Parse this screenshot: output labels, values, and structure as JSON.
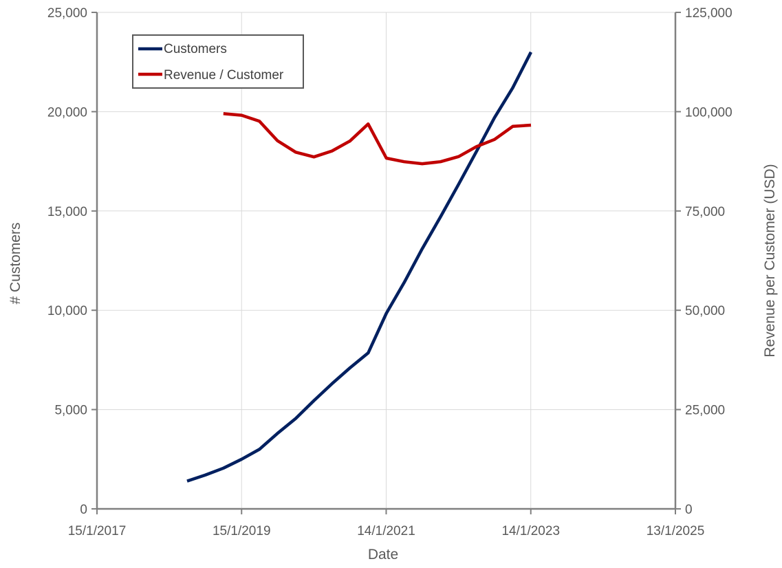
{
  "chart_data": {
    "type": "line",
    "xlabel": "Date",
    "ylabel_left": "# Customers",
    "ylabel_right": "Revenue per Customer (USD)",
    "x_range": [
      "2017-01-15",
      "2025-01-13"
    ],
    "x_ticks": [
      "15/1/2017",
      "15/1/2019",
      "14/1/2021",
      "14/1/2023",
      "13/1/2025"
    ],
    "y_left_range": [
      0,
      25000
    ],
    "y_left_ticks": [
      "0",
      "5,000",
      "10,000",
      "15,000",
      "20,000",
      "25,000"
    ],
    "y_right_range": [
      0,
      125000
    ],
    "y_right_ticks": [
      "0",
      "25,000",
      "50,000",
      "75,000",
      "100,000",
      "125,000"
    ],
    "grid": true,
    "legend_position": "top-left",
    "series": [
      {
        "name": "Customers",
        "axis": "left",
        "color": "#002060",
        "points": [
          [
            "2018-04-15",
            1400
          ],
          [
            "2018-07-15",
            1700
          ],
          [
            "2018-10-15",
            2050
          ],
          [
            "2019-01-15",
            2500
          ],
          [
            "2019-04-15",
            3000
          ],
          [
            "2019-07-15",
            3800
          ],
          [
            "2019-10-15",
            4550
          ],
          [
            "2020-01-15",
            5450
          ],
          [
            "2020-04-15",
            6300
          ],
          [
            "2020-07-15",
            7100
          ],
          [
            "2020-10-15",
            7850
          ],
          [
            "2021-01-15",
            9850
          ],
          [
            "2021-04-15",
            11400
          ],
          [
            "2021-07-15",
            13100
          ],
          [
            "2021-10-15",
            14700
          ],
          [
            "2022-01-15",
            16350
          ],
          [
            "2022-04-15",
            18000
          ],
          [
            "2022-07-15",
            19700
          ],
          [
            "2022-10-15",
            21200
          ],
          [
            "2023-01-15",
            23000
          ]
        ]
      },
      {
        "name": "Revenue / Customer",
        "axis": "right",
        "color": "#C00000",
        "points": [
          [
            "2018-10-15",
            99500
          ],
          [
            "2019-01-15",
            99100
          ],
          [
            "2019-04-15",
            97600
          ],
          [
            "2019-07-15",
            92700
          ],
          [
            "2019-10-15",
            89800
          ],
          [
            "2020-01-15",
            88600
          ],
          [
            "2020-04-15",
            90100
          ],
          [
            "2020-07-15",
            92600
          ],
          [
            "2020-10-15",
            96900
          ],
          [
            "2021-01-15",
            88300
          ],
          [
            "2021-04-15",
            87400
          ],
          [
            "2021-07-15",
            86900
          ],
          [
            "2021-10-15",
            87400
          ],
          [
            "2022-01-15",
            88700
          ],
          [
            "2022-04-15",
            91200
          ],
          [
            "2022-07-15",
            93000
          ],
          [
            "2022-10-15",
            96300
          ],
          [
            "2023-01-15",
            96600
          ]
        ]
      }
    ]
  }
}
